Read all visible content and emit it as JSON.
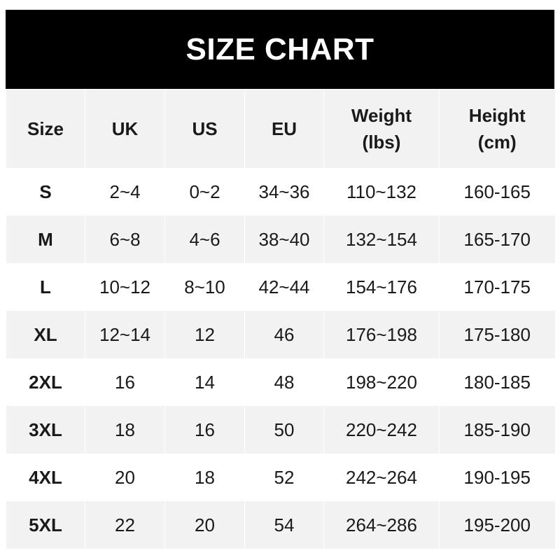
{
  "title": "SIZE CHART",
  "headers": [
    [
      "Size"
    ],
    [
      "UK"
    ],
    [
      "US"
    ],
    [
      "EU"
    ],
    [
      "Weight",
      "(lbs)"
    ],
    [
      "Height",
      "(cm)"
    ]
  ],
  "rows": [
    [
      "S",
      "2~4",
      "0~2",
      "34~36",
      "110~132",
      "160-165"
    ],
    [
      "M",
      "6~8",
      "4~6",
      "38~40",
      "132~154",
      "165-170"
    ],
    [
      "L",
      "10~12",
      "8~10",
      "42~44",
      "154~176",
      "170-175"
    ],
    [
      "XL",
      "12~14",
      "12",
      "46",
      "176~198",
      "175-180"
    ],
    [
      "2XL",
      "16",
      "14",
      "48",
      "198~220",
      "180-185"
    ],
    [
      "3XL",
      "18",
      "16",
      "50",
      "220~242",
      "185-190"
    ],
    [
      "4XL",
      "20",
      "18",
      "52",
      "242~264",
      "190-195"
    ],
    [
      "5XL",
      "22",
      "20",
      "54",
      "264~286",
      "195-200"
    ]
  ],
  "colors": {
    "title_bg": "#000000",
    "stripe": "#f2f2f2"
  }
}
